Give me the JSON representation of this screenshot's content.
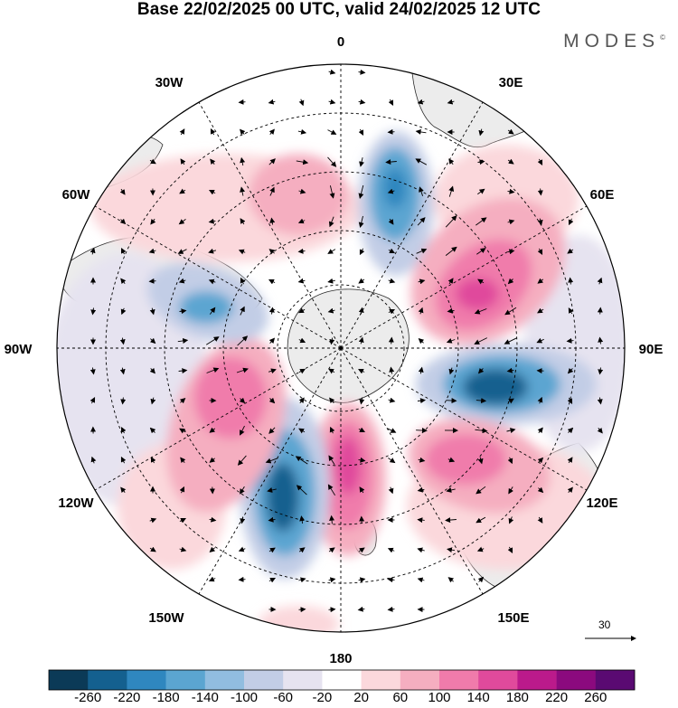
{
  "title": "Base 22/02/2025 00 UTC, valid 24/02/2025 12 UTC",
  "brand": "MODES",
  "brand_mark": "©",
  "longitude_labels": {
    "lon_0": "0",
    "lon_30e": "30E",
    "lon_60e": "60E",
    "lon_90e": "90E",
    "lon_120e": "120E",
    "lon_150e": "150E",
    "lon_180": "180",
    "lon_150w": "150W",
    "lon_120w": "120W",
    "lon_90w": "90W",
    "lon_60w": "60W",
    "lon_30w": "30W"
  },
  "vector_scale": "30",
  "colorbar": {
    "levels": [
      "-260",
      "-220",
      "-180",
      "-140",
      "-100",
      "-60",
      "-20",
      "20",
      "60",
      "100",
      "140",
      "180",
      "220",
      "260"
    ],
    "colors": [
      "#0b3a57",
      "#14608f",
      "#2f87bf",
      "#5ba5d1",
      "#91bde0",
      "#c2cde6",
      "#e6e3f0",
      "#ffffff",
      "#fbd8dc",
      "#f5aec0",
      "#f07bab",
      "#e04a9c",
      "#bb1a8b",
      "#8b0a7e",
      "#5a0a72"
    ]
  },
  "colors": {
    "land": "#ececec",
    "coast": "#2a2a2a",
    "grid": "#000000"
  }
}
